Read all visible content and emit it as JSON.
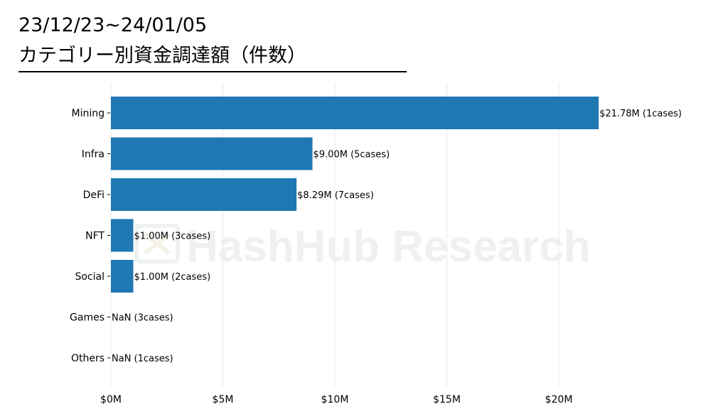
{
  "header": {
    "date_range": "23/12/23~24/01/05",
    "title": "カテゴリー別資金調達額（件数）"
  },
  "watermark": {
    "text": "HashHub Research"
  },
  "colors": {
    "bar": "#1f77b4",
    "grid": "#e8e8e8",
    "text": "#000000"
  },
  "chart_data": {
    "type": "bar",
    "orientation": "horizontal",
    "categories": [
      "Mining",
      "Infra",
      "DeFi",
      "NFT",
      "Social",
      "Games",
      "Others"
    ],
    "values": [
      21.78,
      9.0,
      8.29,
      1.0,
      1.0,
      null,
      null
    ],
    "data_labels": [
      "$21.78M (1cases)",
      "$9.00M (5cases)",
      "$8.29M (7cases)",
      "$1.00M (3cases)",
      "$1.00M (2cases)",
      "NaN (3cases)",
      "NaN (1cases)"
    ],
    "x_ticks": [
      0,
      5,
      10,
      15,
      20
    ],
    "x_tick_labels": [
      "$0M",
      "$5M",
      "$10M",
      "$15M",
      "$20M"
    ],
    "xlim": [
      0,
      23
    ],
    "grid": "vertical",
    "title": "カテゴリー別資金調達額（件数）",
    "xlabel": "",
    "ylabel": ""
  }
}
